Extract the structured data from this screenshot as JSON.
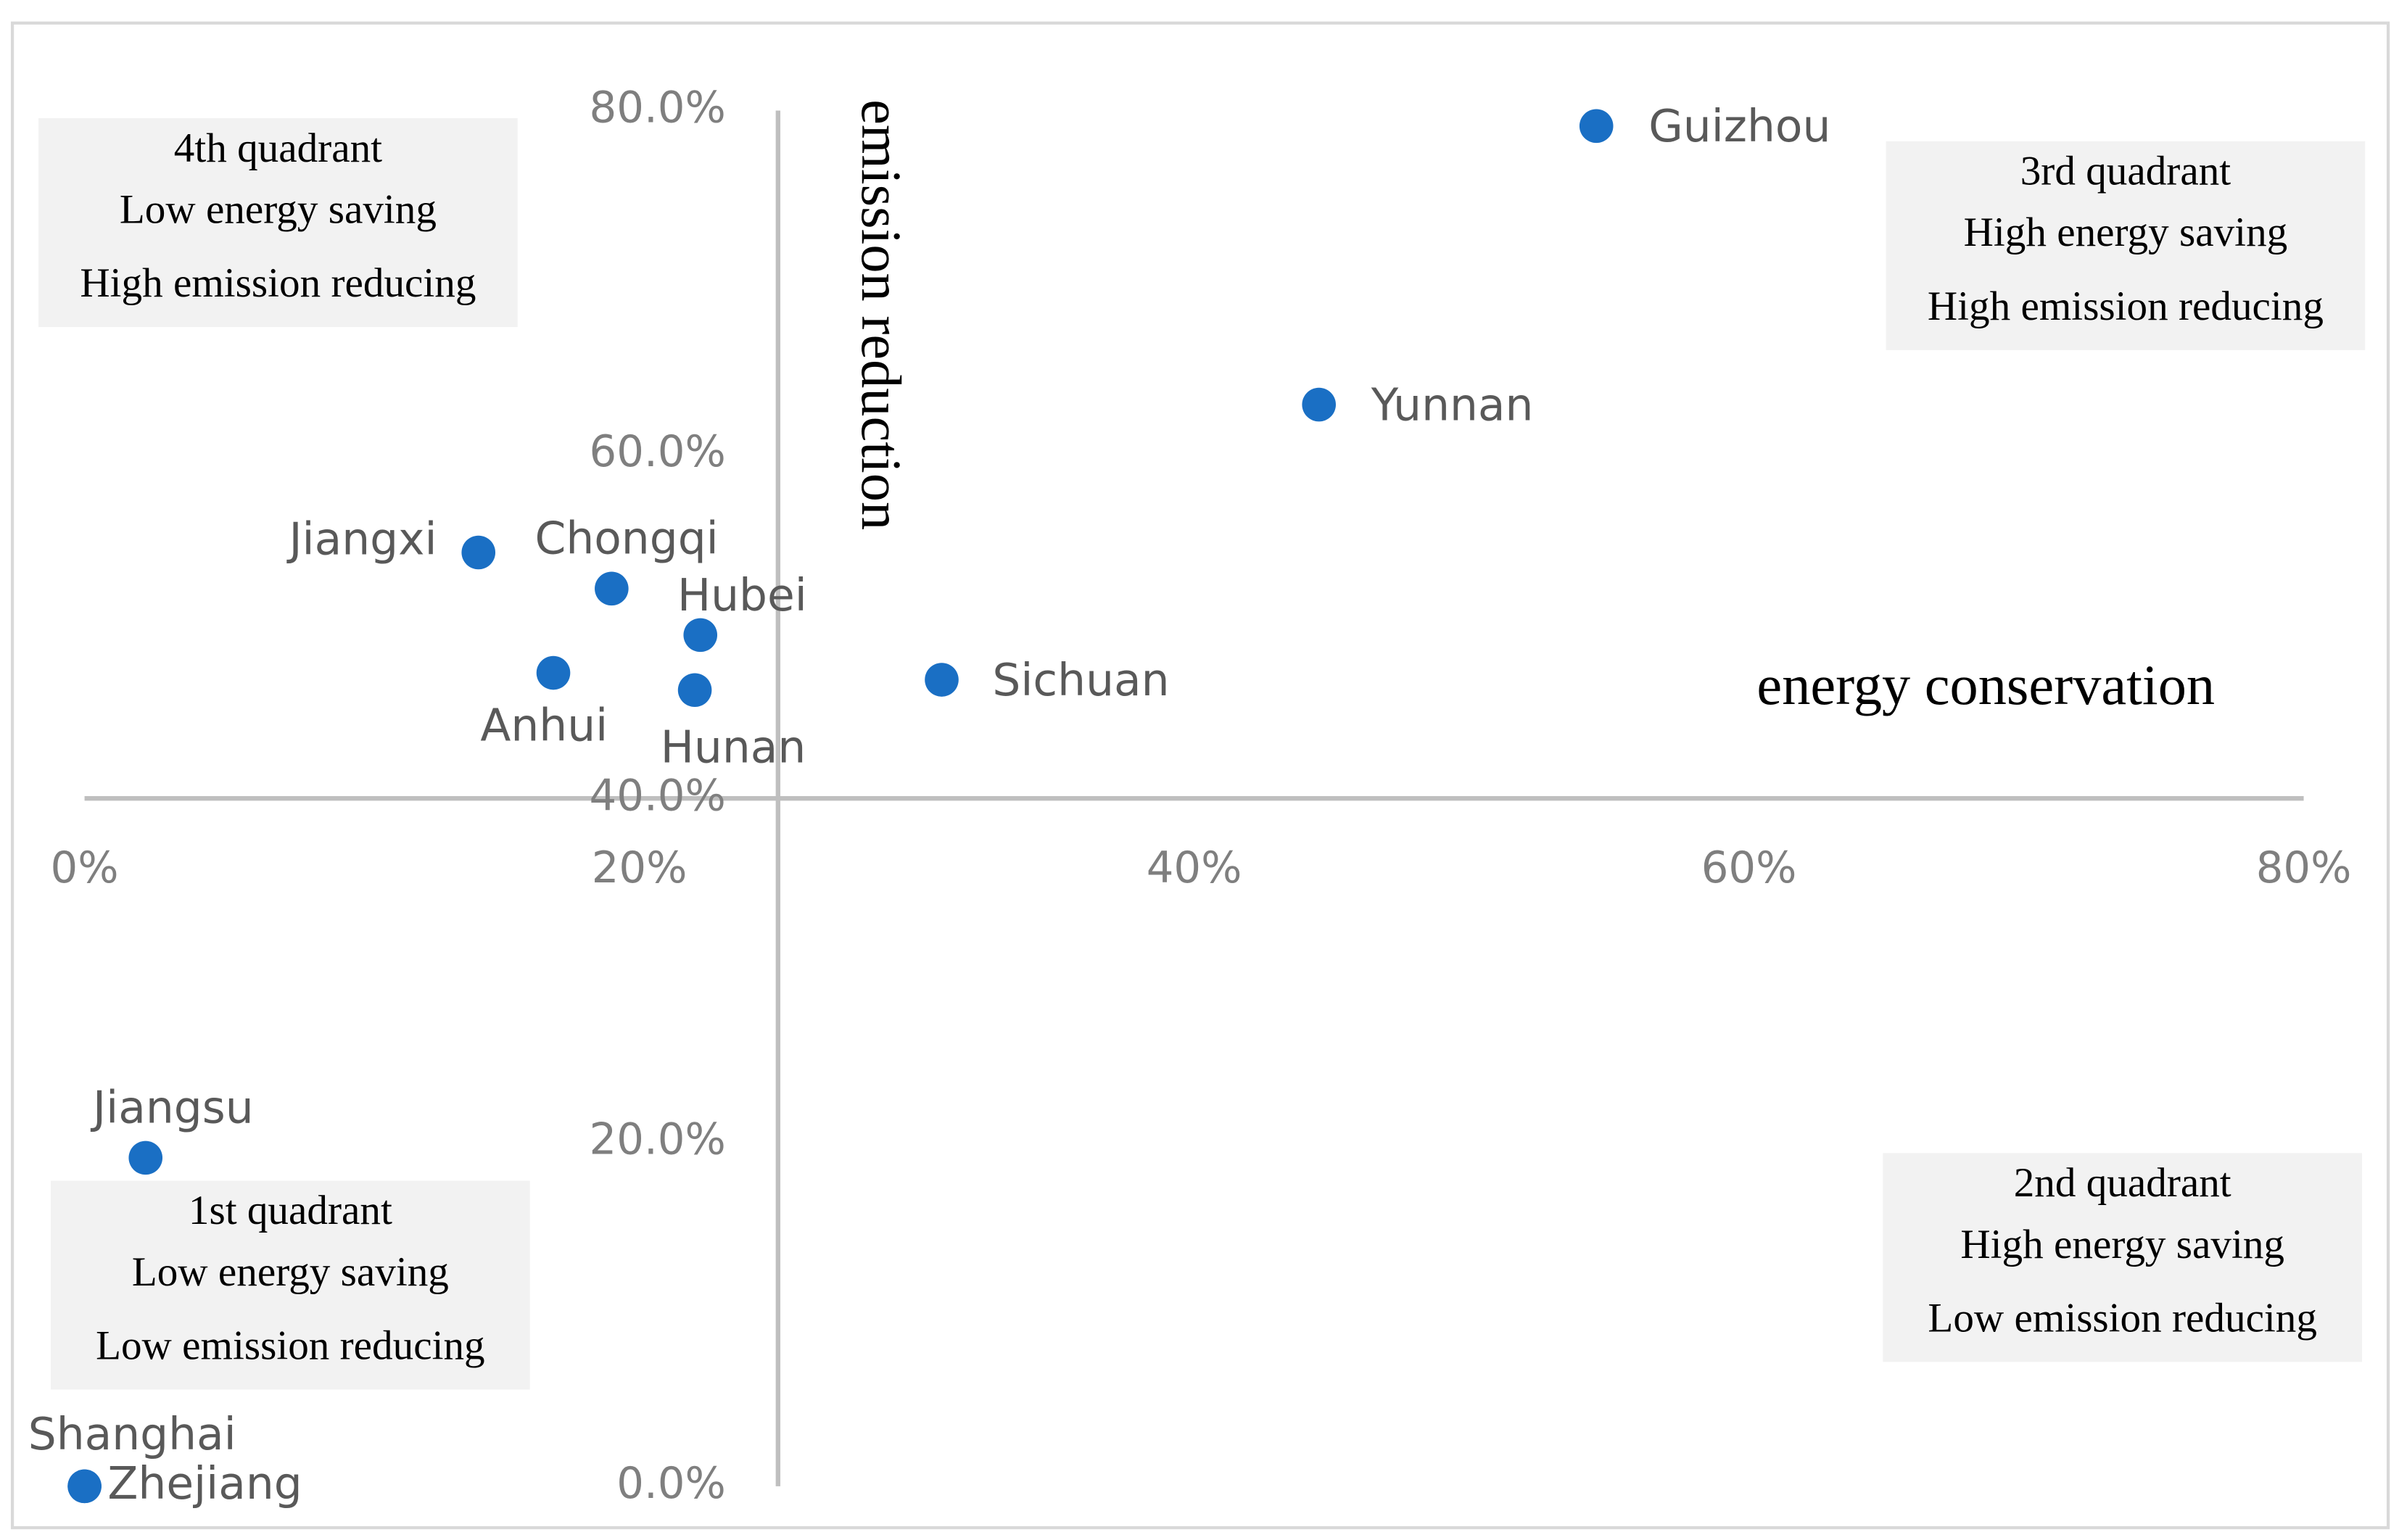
{
  "chart_data": {
    "type": "scatter",
    "x_label": "energy conservation",
    "y_label": "emission reduction",
    "xlim": [
      0,
      80
    ],
    "ylim": [
      0,
      80
    ],
    "xticks": [
      {
        "value": 0,
        "label": "0%"
      },
      {
        "value": 20,
        "label": "20%"
      },
      {
        "value": 40,
        "label": "40%"
      },
      {
        "value": 60,
        "label": "60%"
      },
      {
        "value": 80,
        "label": "80%"
      }
    ],
    "yticks": [
      {
        "value": 0,
        "label": "0.0%"
      },
      {
        "value": 20,
        "label": "20.0%"
      },
      {
        "value": 40,
        "label": "40.0%"
      },
      {
        "value": 60,
        "label": "60.0%"
      },
      {
        "value": 80,
        "label": "80.0%"
      }
    ],
    "axis_cross": {
      "x": 25,
      "y": 40
    },
    "series": [
      {
        "color": "#1a6fc4",
        "point_labels": [
          "Guizhou",
          "Yunnan",
          "Jiangxi",
          "Chongqi",
          "Hubei",
          "Anhui",
          "Hunan",
          "Sichuan",
          "Jiangsu",
          "Shanghai",
          "Zhejiang"
        ],
        "x": [
          54.5,
          44.5,
          14.2,
          19.0,
          22.2,
          16.9,
          22.0,
          30.9,
          2.2,
          0,
          0
        ],
        "values": [
          79.1,
          62.9,
          54.3,
          52.2,
          49.5,
          47.3,
          46.3,
          46.9,
          19.1,
          0,
          0
        ]
      }
    ],
    "annotations": [
      [
        "4th quadrant",
        "Low energy saving",
        "High emission reducing"
      ],
      [
        "3rd quadrant",
        "High energy saving",
        "High emission reducing"
      ],
      [
        "2nd quadrant",
        "High energy saving",
        "Low emission reducing"
      ],
      [
        "1st quadrant",
        "Low energy saving",
        "Low emission reducing"
      ]
    ]
  }
}
